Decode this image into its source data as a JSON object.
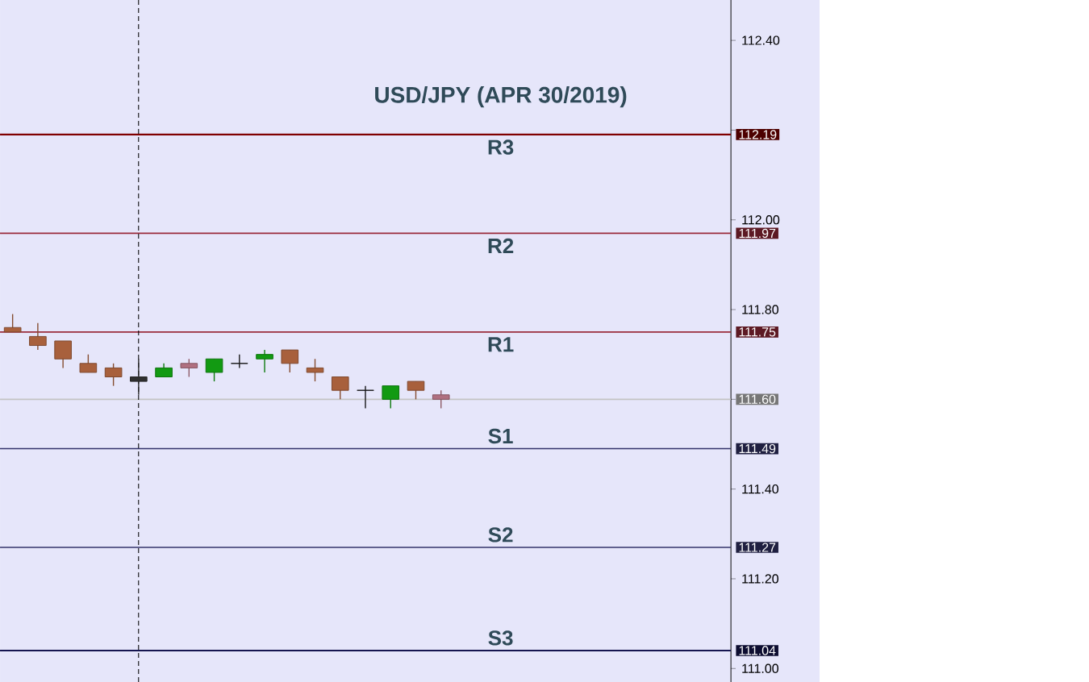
{
  "chart_data": {
    "type": "candlestick",
    "title": "USD/JPY (APR 30/2019)",
    "categories": [
      null,
      null,
      null,
      null,
      null,
      null,
      null,
      null,
      null,
      null,
      null,
      null,
      null,
      null,
      null,
      null,
      null,
      null,
      null,
      null,
      null,
      null,
      null,
      null,
      null,
      null,
      null,
      null,
      null
    ],
    "ohlc": [
      [
        111.76,
        111.79,
        111.75,
        111.75
      ],
      [
        111.74,
        111.77,
        111.71,
        111.72
      ],
      [
        111.73,
        111.73,
        111.67,
        111.69
      ],
      [
        111.68,
        111.7,
        111.66,
        111.66
      ],
      [
        111.67,
        111.68,
        111.63,
        111.65
      ],
      [
        111.65,
        111.69,
        111.61,
        111.64
      ],
      [
        111.65,
        111.68,
        111.65,
        111.67
      ],
      [
        111.68,
        111.69,
        111.65,
        111.67
      ],
      [
        111.66,
        111.69,
        111.64,
        111.69
      ],
      [
        111.68,
        111.7,
        111.67,
        111.68
      ],
      [
        111.69,
        111.71,
        111.66,
        111.7
      ],
      [
        111.71,
        111.71,
        111.66,
        111.68
      ],
      [
        111.67,
        111.69,
        111.64,
        111.66
      ],
      [
        111.65,
        111.65,
        111.6,
        111.62
      ],
      [
        111.62,
        111.63,
        111.58,
        111.62
      ],
      [
        111.6,
        111.63,
        111.58,
        111.63
      ],
      [
        111.64,
        111.64,
        111.6,
        111.62
      ],
      [
        111.61,
        111.62,
        111.58,
        111.6
      ],
      null,
      null,
      null,
      null,
      null,
      null,
      null,
      null,
      null,
      null,
      null
    ],
    "colors": [
      "#a8603c",
      "#a8603c",
      "#a8603c",
      "#a8603c",
      "#a8603c",
      "#303030",
      "#129a12",
      "#b07080",
      "#129a12",
      "#202020",
      "#129a12",
      "#a8603c",
      "#a8603c",
      "#a8603c",
      "#202020",
      "#129a12",
      "#a8603c",
      "#b07080",
      null,
      null,
      null,
      null,
      null,
      null,
      null,
      null,
      null,
      null,
      null
    ],
    "ylim": [
      110.97,
      112.49
    ],
    "yticks": [
      {
        "value": 111.0,
        "label": "111.00"
      },
      {
        "value": 111.2,
        "label": "111.20"
      },
      {
        "value": 111.4,
        "label": "111.40"
      },
      {
        "value": 111.6,
        "label": null
      },
      {
        "value": 111.8,
        "label": "111.80"
      },
      {
        "value": 112.0,
        "label": "112.00"
      },
      {
        "value": 112.2,
        "label": null
      },
      {
        "value": 112.4,
        "label": "112.40"
      }
    ],
    "tick_labels": "y",
    "grid": false,
    "ref_lines": [
      {
        "axis": "y",
        "value": 112.19,
        "label": "R3",
        "color": "#800000"
      },
      {
        "axis": "y",
        "value": 111.97,
        "label": "R2",
        "color": "#9a2a3a"
      },
      {
        "axis": "y",
        "value": 111.75,
        "label": "R1",
        "color": "#9a2a3a"
      },
      {
        "axis": "y",
        "value": 111.6,
        "color": "#c4c4c4"
      },
      {
        "axis": "y",
        "value": 111.49,
        "label": "S1",
        "color": "#33336a"
      },
      {
        "axis": "y",
        "value": 111.27,
        "label": "S2",
        "color": "#33336a"
      },
      {
        "axis": "y",
        "value": 111.04,
        "label": "S3",
        "color": "#151550"
      }
    ],
    "annotations": [
      "112.19",
      "111.97",
      "111.75",
      "111.60",
      "111.49",
      "111.27",
      "111.04"
    ]
  }
}
